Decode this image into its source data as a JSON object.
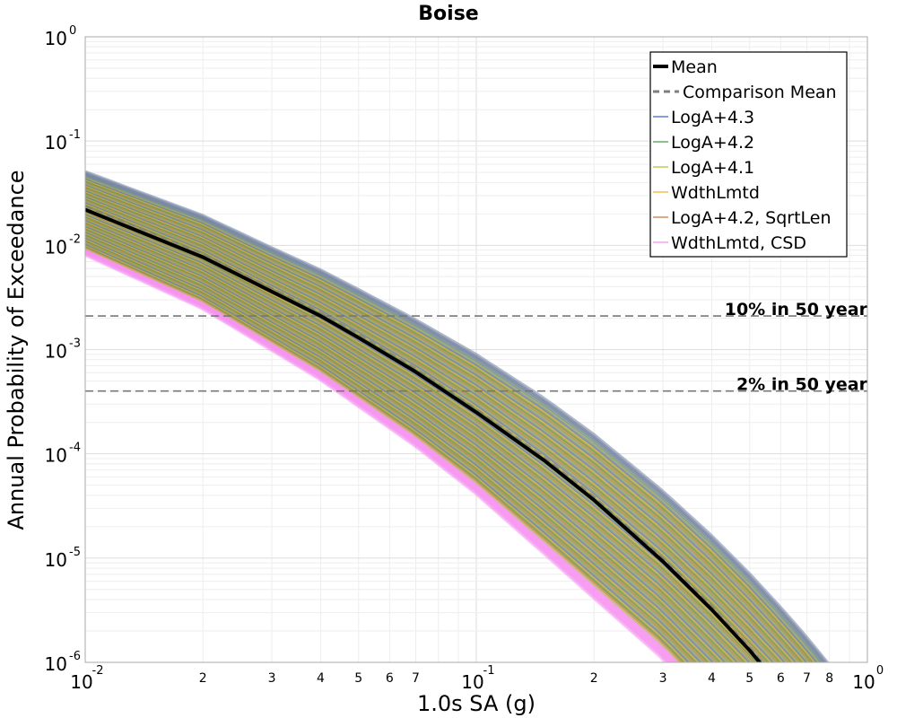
{
  "chart_data": {
    "type": "line",
    "title": "Boise",
    "xlabel": "1.0s SA (g)",
    "ylabel": "Annual Probability of Exceedance",
    "xscale": "log",
    "yscale": "log",
    "xlim": [
      0.01,
      1.0
    ],
    "ylim": [
      1e-06,
      1.0
    ],
    "grid": true,
    "legend_position": "top-right",
    "x_major_ticks": [
      {
        "value": 0.01,
        "base": "10",
        "exp": "-2"
      },
      {
        "value": 0.1,
        "base": "10",
        "exp": "-1"
      },
      {
        "value": 1.0,
        "base": "10",
        "exp": "0"
      }
    ],
    "x_minor_ticks": [
      {
        "value": 0.02,
        "label": "2"
      },
      {
        "value": 0.03,
        "label": "3"
      },
      {
        "value": 0.04,
        "label": "4"
      },
      {
        "value": 0.05,
        "label": "5"
      },
      {
        "value": 0.06,
        "label": "6"
      },
      {
        "value": 0.07,
        "label": "7"
      },
      {
        "value": 0.2,
        "label": "2"
      },
      {
        "value": 0.3,
        "label": "3"
      },
      {
        "value": 0.4,
        "label": "4"
      },
      {
        "value": 0.5,
        "label": "5"
      },
      {
        "value": 0.6,
        "label": "6"
      },
      {
        "value": 0.7,
        "label": "7"
      },
      {
        "value": 0.8,
        "label": "8"
      }
    ],
    "y_major_ticks": [
      {
        "value": 1.0,
        "base": "10",
        "exp": "0"
      },
      {
        "value": 0.1,
        "base": "10",
        "exp": "-1"
      },
      {
        "value": 0.01,
        "base": "10",
        "exp": "-2"
      },
      {
        "value": 0.001,
        "base": "10",
        "exp": "-3"
      },
      {
        "value": 0.0001,
        "base": "10",
        "exp": "-4"
      },
      {
        "value": 1e-05,
        "base": "10",
        "exp": "-5"
      },
      {
        "value": 1e-06,
        "base": "10",
        "exp": "-6"
      }
    ],
    "reference_lines": [
      {
        "label": "10% in 50 year",
        "y": 0.0021
      },
      {
        "label": "2% in 50 year",
        "y": 0.0004
      }
    ],
    "mean": {
      "name": "Mean",
      "color": "#000000",
      "x": [
        0.01,
        0.02,
        0.03,
        0.04,
        0.05,
        0.07,
        0.1,
        0.15,
        0.2,
        0.3,
        0.4,
        0.5,
        0.55
      ],
      "y": [
        0.022,
        0.0077,
        0.0036,
        0.0021,
        0.0013,
        0.00061,
        0.00025,
        8.5e-05,
        3.6e-05,
        9.3e-06,
        3.2e-06,
        1.3e-06,
        8.5e-07
      ]
    },
    "band": {
      "upper": {
        "x": [
          0.01,
          0.02,
          0.03,
          0.04,
          0.05,
          0.07,
          0.1,
          0.15,
          0.2,
          0.3,
          0.4,
          0.5,
          0.6,
          0.7,
          0.8,
          0.85
        ],
        "y": [
          0.05,
          0.019,
          0.0093,
          0.0057,
          0.0037,
          0.0019,
          0.00088,
          0.00033,
          0.00015,
          4.3e-05,
          1.6e-05,
          6.9e-06,
          3.3e-06,
          1.7e-06,
          9.2e-07,
          7e-07
        ]
      },
      "lower": {
        "x": [
          0.01,
          0.02,
          0.03,
          0.04,
          0.05,
          0.07,
          0.1,
          0.15,
          0.2,
          0.3,
          0.35
        ],
        "y": [
          0.0082,
          0.0025,
          0.001,
          0.00052,
          0.00029,
          0.00012,
          4.2e-05,
          1.1e-05,
          4.2e-06,
          1.1e-06,
          6e-07
        ]
      }
    },
    "series": [
      {
        "name": "Mean",
        "color": "#000000",
        "style": "solid-thick"
      },
      {
        "name": "Comparison Mean",
        "color": "#7f7f7f",
        "style": "dashed"
      },
      {
        "name": "LogA+4.3",
        "color": "#3b62d1",
        "style": "solid"
      },
      {
        "name": "LogA+4.2",
        "color": "#4b9a4b",
        "style": "solid"
      },
      {
        "name": "LogA+4.1",
        "color": "#a9c23a",
        "style": "solid"
      },
      {
        "name": "WdthLmtd",
        "color": "#f0b23a",
        "style": "solid"
      },
      {
        "name": "LogA+4.2, SqrtLen",
        "color": "#c9763c",
        "style": "solid"
      },
      {
        "name": "WdthLmtd, CSD",
        "color": "#f58ef0",
        "style": "solid"
      }
    ]
  }
}
